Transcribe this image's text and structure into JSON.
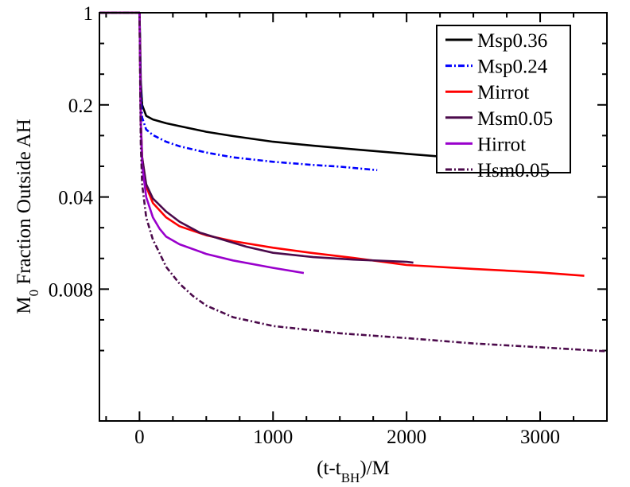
{
  "chart_data": {
    "type": "line",
    "title": "",
    "xlabel": "(t-t",
    "xlabel_sub": "BH",
    "xlabel_tail": ")/M",
    "ylabel_pre": "M",
    "ylabel_sub": "0",
    "ylabel_post": " Fraction Outside AH",
    "xlim": [
      -300,
      3500
    ],
    "ylim_log": [
      0.0008,
      1.0
    ],
    "yscale": "log",
    "x_ticks": [
      0,
      1000,
      2000,
      3000
    ],
    "x_tick_labels": [
      "0",
      "1000",
      "2000",
      "3000"
    ],
    "y_ticks": [
      1,
      0.2,
      0.04,
      0.008
    ],
    "y_tick_labels": [
      "1",
      "0.2",
      "0.04",
      "0.008"
    ],
    "legend_position": "top-right",
    "series": [
      {
        "name": "Msp0.36",
        "color": "#000000",
        "dash": "solid",
        "x": [
          -300,
          0,
          5,
          10,
          20,
          50,
          100,
          200,
          300,
          500,
          700,
          1000,
          1300,
          1600,
          2000,
          2260
        ],
        "y": [
          1.0,
          1.0,
          0.6,
          0.3,
          0.2,
          0.165,
          0.155,
          0.145,
          0.138,
          0.125,
          0.116,
          0.105,
          0.098,
          0.092,
          0.085,
          0.081
        ]
      },
      {
        "name": "Msp0.24",
        "color": "#0000ff",
        "dash": "dashdot",
        "x": [
          -300,
          0,
          5,
          10,
          20,
          50,
          100,
          200,
          300,
          500,
          700,
          1000,
          1300,
          1500,
          1780
        ],
        "y": [
          1.0,
          1.0,
          0.5,
          0.25,
          0.16,
          0.13,
          0.118,
          0.105,
          0.097,
          0.087,
          0.08,
          0.074,
          0.07,
          0.068,
          0.064
        ]
      },
      {
        "name": "Mirrot",
        "color": "#ff0000",
        "dash": "solid",
        "x": [
          -300,
          0,
          5,
          10,
          20,
          50,
          100,
          200,
          300,
          500,
          700,
          1000,
          1300,
          1600,
          2000,
          2500,
          3000,
          3330
        ],
        "y": [
          1.0,
          1.0,
          0.4,
          0.15,
          0.08,
          0.048,
          0.036,
          0.028,
          0.024,
          0.0205,
          0.0185,
          0.0165,
          0.015,
          0.0138,
          0.0122,
          0.0114,
          0.0107,
          0.0101
        ]
      },
      {
        "name": "Msm0.05",
        "color": "#4b0a4b",
        "dash": "solid",
        "x": [
          -300,
          0,
          5,
          10,
          20,
          50,
          100,
          200,
          300,
          450,
          600,
          800,
          1000,
          1300,
          1600,
          2000,
          2050
        ],
        "y": [
          1.0,
          1.0,
          0.4,
          0.15,
          0.08,
          0.05,
          0.039,
          0.031,
          0.026,
          0.0215,
          0.0193,
          0.0168,
          0.0151,
          0.014,
          0.0134,
          0.0129,
          0.0127
        ]
      },
      {
        "name": "Hirrot",
        "color": "#9900cc",
        "dash": "solid",
        "x": [
          -300,
          0,
          5,
          10,
          20,
          50,
          100,
          150,
          200,
          300,
          500,
          700,
          1000,
          1230
        ],
        "y": [
          1.0,
          1.0,
          0.4,
          0.15,
          0.07,
          0.04,
          0.028,
          0.023,
          0.02,
          0.0175,
          0.0148,
          0.0132,
          0.0116,
          0.0106
        ]
      },
      {
        "name": "Hsm0.05",
        "color": "#4b0a4b",
        "dash": "dashdot",
        "x": [
          -300,
          0,
          5,
          10,
          20,
          50,
          100,
          150,
          200,
          300,
          400,
          500,
          700,
          1000,
          1500,
          2000,
          2500,
          3000,
          3500
        ],
        "y": [
          1.0,
          1.0,
          0.3,
          0.1,
          0.05,
          0.028,
          0.019,
          0.015,
          0.0118,
          0.0088,
          0.0071,
          0.006,
          0.0049,
          0.0042,
          0.0037,
          0.0034,
          0.0031,
          0.0029,
          0.0027
        ]
      }
    ]
  }
}
